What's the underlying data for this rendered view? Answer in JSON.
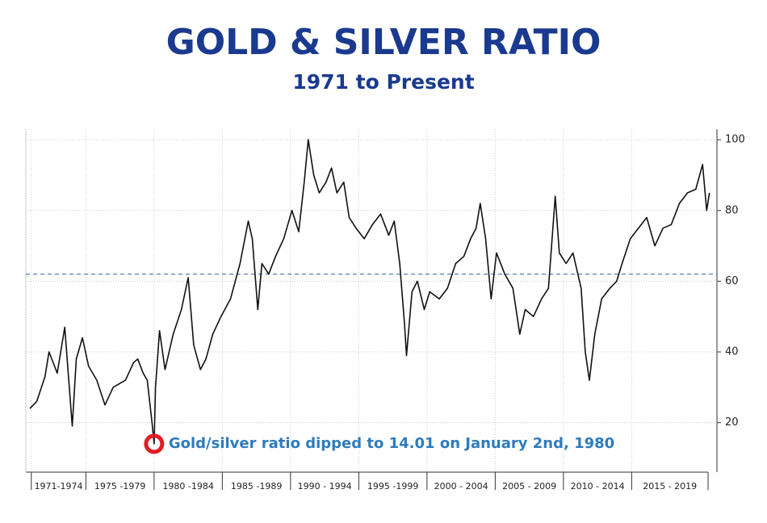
{
  "chart_data": {
    "type": "line",
    "title": "GOLD & SILVER RATIO",
    "subtitle": "1971 to Present",
    "x": [
      1970.9,
      1971.4,
      1972.0,
      1972.3,
      1972.9,
      1973.45,
      1974.0,
      1974.3,
      1974.75,
      1975.2,
      1975.8,
      1976.4,
      1977.0,
      1977.9,
      1978.5,
      1978.8,
      1979.2,
      1979.5,
      1979.85,
      1980.0,
      1980.1,
      1980.4,
      1980.8,
      1981.4,
      1982.0,
      1982.5,
      1982.9,
      1983.4,
      1983.8,
      1984.3,
      1984.9,
      1985.6,
      1986.3,
      1986.9,
      1987.2,
      1987.6,
      1987.9,
      1988.4,
      1988.9,
      1989.5,
      1990.1,
      1990.6,
      1991.0,
      1991.3,
      1991.7,
      1992.1,
      1992.6,
      1993.0,
      1993.4,
      1993.9,
      1994.3,
      1994.8,
      1995.4,
      1996.0,
      1996.6,
      1997.2,
      1997.6,
      1998.0,
      1998.35,
      1998.5,
      1998.9,
      1999.3,
      1999.8,
      2000.2,
      2000.9,
      2001.5,
      2002.1,
      2002.7,
      2003.2,
      2003.6,
      2003.9,
      2004.3,
      2004.7,
      2005.1,
      2005.7,
      2006.3,
      2006.8,
      2007.2,
      2007.8,
      2008.4,
      2008.9,
      2009.4,
      2009.7,
      2010.2,
      2010.7,
      2011.3,
      2011.6,
      2011.9,
      2012.3,
      2012.8,
      2013.4,
      2013.9,
      2014.3,
      2014.9,
      2015.5,
      2016.1,
      2016.7,
      2017.3,
      2017.9,
      2018.5,
      2019.1,
      2019.7,
      2020.2,
      2020.5,
      2020.7
    ],
    "values": [
      24,
      26,
      33,
      40,
      34,
      47,
      19,
      38,
      44,
      36,
      32,
      25,
      30,
      32,
      37,
      38,
      34,
      32,
      20,
      14.01,
      30,
      46,
      35,
      45,
      52,
      61,
      42,
      35,
      38,
      45,
      50,
      55,
      65,
      77,
      72,
      52,
      65,
      62,
      67,
      72,
      80,
      74,
      88,
      100,
      90,
      85,
      88,
      92,
      85,
      88,
      78,
      75,
      72,
      76,
      79,
      73,
      77,
      65,
      48,
      39,
      57,
      60,
      52,
      57,
      55,
      58,
      65,
      67,
      72,
      75,
      82,
      72,
      55,
      68,
      62,
      58,
      45,
      52,
      50,
      55,
      58,
      84,
      68,
      65,
      68,
      58,
      40,
      32,
      45,
      55,
      58,
      60,
      65,
      72,
      75,
      78,
      70,
      75,
      76,
      82,
      85,
      86,
      93,
      80,
      85
    ],
    "color": "#111111",
    "xlim": [
      1970.6,
      2020.6
    ],
    "ylim": [
      6,
      103
    ],
    "yticks": [
      20,
      40,
      60,
      80,
      100
    ],
    "grid": true,
    "x_periods": [
      {
        "label": "1971-1974",
        "start": 1971
      },
      {
        "label": "1975 -1979",
        "start": 1975
      },
      {
        "label": "1980 -1984",
        "start": 1980
      },
      {
        "label": "1985 -1989",
        "start": 1985
      },
      {
        "label": "1990 - 1994",
        "start": 1990
      },
      {
        "label": "1995 -1999",
        "start": 1995
      },
      {
        "label": "2000 - 2004",
        "start": 2000
      },
      {
        "label": "2005 - 2009",
        "start": 2005
      },
      {
        "label": "2010 - 2014",
        "start": 2010
      },
      {
        "label": "2015 - 2019",
        "start": 2015
      }
    ],
    "reference_line": {
      "value": 62,
      "color": "#5b7fb8"
    },
    "annotation": {
      "text": "Gold/silver ratio dipped to 14.01 on January 2nd, 1980",
      "x": 1980.0,
      "y": 14.01,
      "color": "#e31b23",
      "text_color": "#2e7bbd"
    },
    "title_color": "#1a3a8f"
  }
}
